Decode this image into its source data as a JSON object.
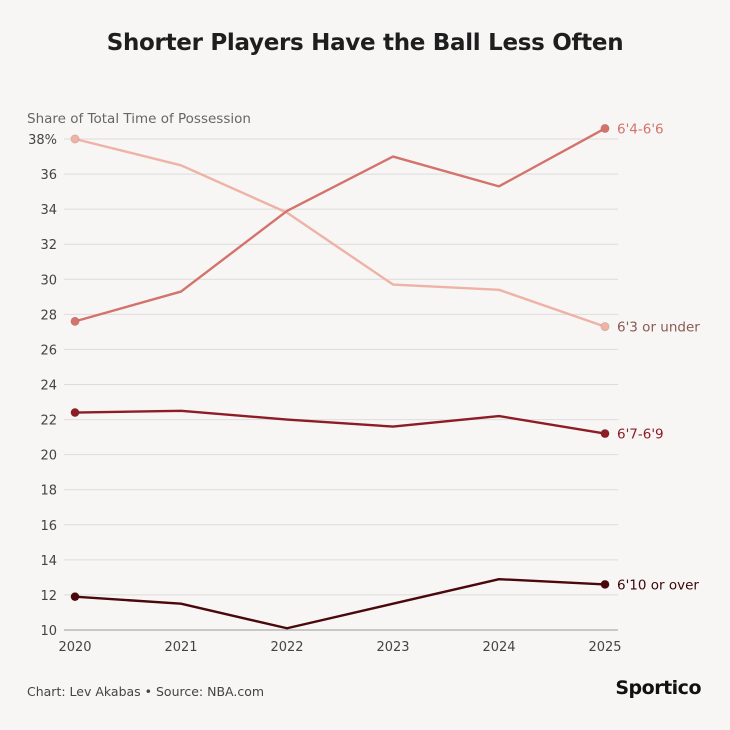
{
  "title": "Shorter Players Have the Ball Less Often",
  "footer": {
    "credit": "Chart: Lev Akabas • Source: NBA.com",
    "brand": "Sportico"
  },
  "chart_data": {
    "type": "line",
    "title": "Shorter Players Have the Ball Less Often",
    "ylabel": "Share of Total Time of Possession",
    "xlabel": "",
    "x": [
      2020,
      2021,
      2022,
      2023,
      2024,
      2025
    ],
    "ylim": [
      10,
      38
    ],
    "yticks": [
      10,
      12,
      14,
      16,
      18,
      20,
      22,
      24,
      26,
      28,
      30,
      32,
      34,
      36,
      38
    ],
    "ytick_labels": [
      "10",
      "12",
      "14",
      "16",
      "18",
      "20",
      "22",
      "24",
      "26",
      "28",
      "30",
      "32",
      "34",
      "36",
      "38%"
    ],
    "grid": true,
    "series": [
      {
        "name": "6'3 or under",
        "color": "#eeb3a6",
        "values": [
          38.0,
          36.5,
          33.8,
          29.7,
          29.4,
          27.3
        ]
      },
      {
        "name": "6'4-6'6",
        "color": "#d3736b",
        "values": [
          27.6,
          29.3,
          33.9,
          37.0,
          35.3,
          38.6
        ]
      },
      {
        "name": "6'7-6'9",
        "color": "#8d1c25",
        "values": [
          22.4,
          22.5,
          22.0,
          21.6,
          22.2,
          21.2
        ]
      },
      {
        "name": "6'10 or over",
        "color": "#4a070c",
        "values": [
          11.9,
          11.5,
          10.1,
          11.5,
          12.9,
          12.6
        ]
      }
    ]
  }
}
